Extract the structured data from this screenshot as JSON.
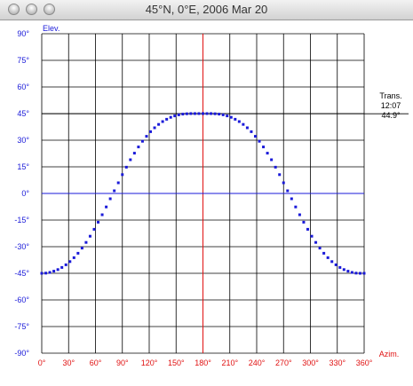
{
  "window": {
    "title": "45°N, 0°E, 2006 Mar 20"
  },
  "chart_data": {
    "type": "scatter",
    "title": "",
    "ylabel": "Elev.",
    "xlabel": "Azim.",
    "xlim": [
      0,
      360
    ],
    "ylim": [
      -90,
      90
    ],
    "grid": true,
    "x_ticks": [
      "0°",
      "30°",
      "60°",
      "90°",
      "120°",
      "150°",
      "180°",
      "210°",
      "240°",
      "270°",
      "300°",
      "330°",
      "360°"
    ],
    "y_ticks": [
      "90°",
      "75°",
      "60°",
      "45°",
      "30°",
      "15°",
      "0°",
      "-15°",
      "-30°",
      "-45°",
      "-60°",
      "-75°",
      "-90°"
    ],
    "horizon_y": 0,
    "meridian_x": 180,
    "transit": {
      "label": "Trans.",
      "time": "12:07",
      "elevation_label": "44.9°",
      "elevation": 44.9
    },
    "series": [
      {
        "x": [
          0,
          4.5,
          9,
          13.5,
          18,
          22.5,
          27,
          31.5,
          36,
          40.5,
          45,
          49.5,
          54,
          58.5,
          63,
          67.5,
          72,
          76.5,
          81,
          85.5,
          90,
          94.5,
          99,
          103.5,
          108,
          112.5,
          117,
          121.5,
          126,
          130.5,
          135,
          139.5,
          144,
          148.5,
          153,
          157.5,
          162,
          166.5,
          171,
          175.5,
          180,
          184.5,
          189,
          193.5,
          198,
          202.5,
          207,
          211.5,
          216,
          220.5,
          225,
          229.5,
          234,
          238.5,
          243,
          247.5,
          252,
          256.5,
          261,
          265.5,
          270,
          274.5,
          279,
          283.5,
          288,
          292.5,
          297,
          301.5,
          306,
          310.5,
          315,
          319.5,
          324,
          328.5,
          333,
          337.5,
          342,
          346.5,
          351,
          355.5,
          360
        ],
        "y": [
          -45,
          -44.9,
          -44.5,
          -43.8,
          -42.9,
          -41.7,
          -40.2,
          -38.4,
          -36.2,
          -33.7,
          -30.8,
          -27.6,
          -24.1,
          -20.2,
          -16.2,
          -12.0,
          -7.6,
          -3.0,
          1.5,
          6.0,
          10.6,
          14.8,
          19.0,
          22.7,
          26.2,
          29.4,
          32.2,
          34.8,
          37.0,
          38.9,
          40.5,
          41.8,
          42.9,
          43.7,
          44.3,
          44.7,
          44.9,
          45.0,
          45.0,
          45.0,
          45.0,
          45.0,
          45.0,
          44.9,
          44.7,
          44.3,
          43.7,
          42.9,
          41.8,
          40.5,
          38.9,
          37.0,
          34.8,
          32.2,
          29.4,
          26.2,
          22.7,
          19.0,
          14.8,
          10.6,
          6.0,
          1.5,
          -3.0,
          -7.6,
          -12.0,
          -16.2,
          -20.2,
          -24.1,
          -27.6,
          -30.8,
          -33.7,
          -36.2,
          -38.4,
          -40.2,
          -41.7,
          -42.9,
          -43.8,
          -44.5,
          -44.9,
          -45,
          -45
        ]
      }
    ],
    "colors": {
      "points": "#1a1ad9",
      "grid": "#000000",
      "meridian": "#e01010",
      "horizon": "#1a1ad9",
      "y_ticks": "#1a1ad9",
      "x_ticks": "#e01010"
    }
  }
}
